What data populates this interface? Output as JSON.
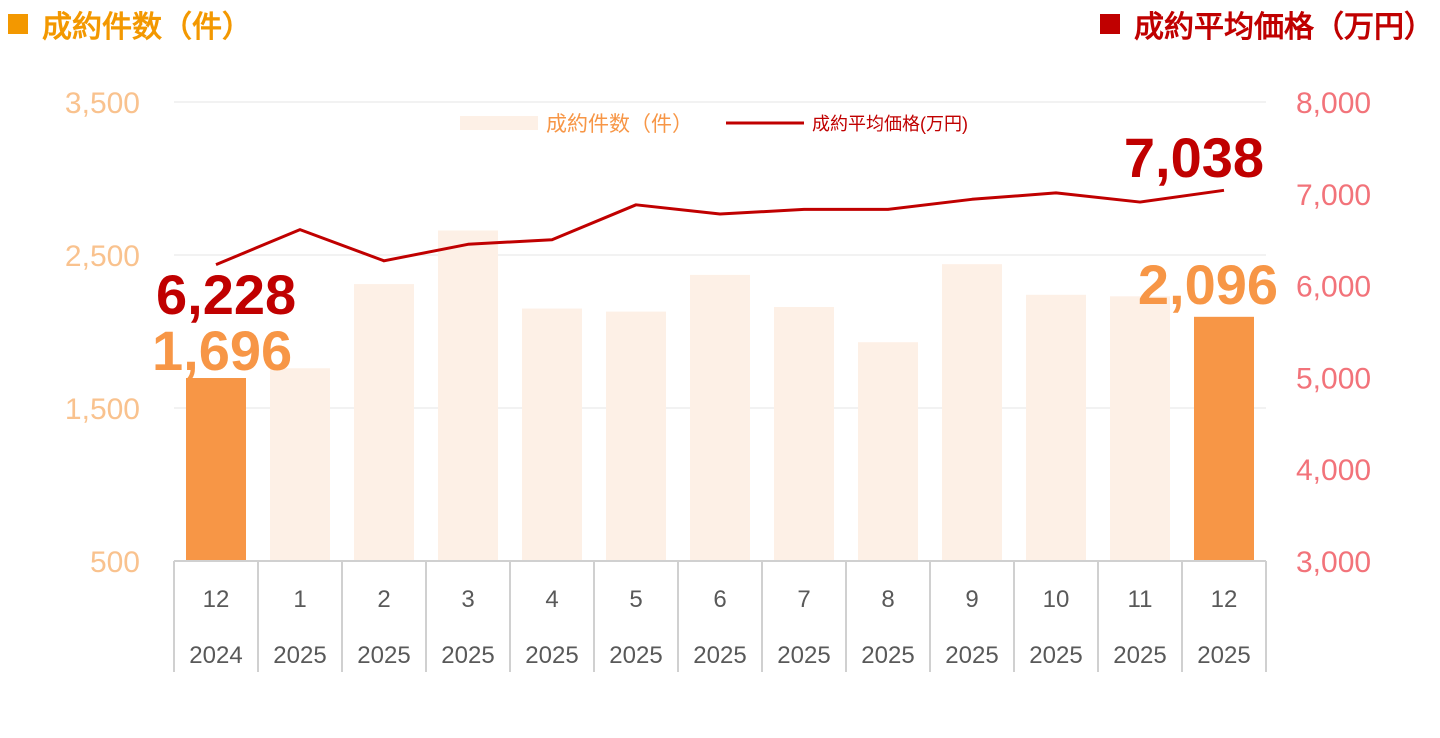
{
  "header": {
    "left_title": "成約件数（件）",
    "right_title": "成約平均価格（万円）",
    "left_color": "#f39800",
    "right_color": "#c00000"
  },
  "chart_data": {
    "type": "bar",
    "categories": [
      {
        "month": "12",
        "year": "2024"
      },
      {
        "month": "1",
        "year": "2025"
      },
      {
        "month": "2",
        "year": "2025"
      },
      {
        "month": "3",
        "year": "2025"
      },
      {
        "month": "4",
        "year": "2025"
      },
      {
        "month": "5",
        "year": "2025"
      },
      {
        "month": "6",
        "year": "2025"
      },
      {
        "month": "7",
        "year": "2025"
      },
      {
        "month": "8",
        "year": "2025"
      },
      {
        "month": "9",
        "year": "2025"
      },
      {
        "month": "10",
        "year": "2025"
      },
      {
        "month": "11",
        "year": "2025"
      },
      {
        "month": "12",
        "year": "2025"
      }
    ],
    "series": [
      {
        "name": "成約件数（件）",
        "type": "bar",
        "axis": "left",
        "values": [
          1696,
          1760,
          2310,
          2660,
          2150,
          2130,
          2370,
          2160,
          1930,
          2440,
          2240,
          2230,
          2096
        ],
        "color": "#f79646",
        "faded_color": "#fdf0e6",
        "highlighted": [
          0,
          12
        ]
      },
      {
        "name": "成約平均価格(万円)",
        "type": "line",
        "axis": "right",
        "values": [
          6228,
          6610,
          6270,
          6450,
          6500,
          6880,
          6780,
          6830,
          6830,
          6940,
          7010,
          6910,
          7038
        ],
        "color": "#c00000"
      }
    ],
    "left_axis": {
      "ticks": [
        "3,500",
        "2,500",
        "1,500",
        "500"
      ],
      "tick_values": [
        3500,
        2500,
        1500,
        500
      ],
      "ylim": [
        500,
        3500
      ],
      "color": "#f9c28e"
    },
    "right_axis": {
      "ticks": [
        "8,000",
        "7,000",
        "6,000",
        "5,000",
        "4,000",
        "3,000"
      ],
      "tick_values": [
        8000,
        7000,
        6000,
        5000,
        4000,
        3000
      ],
      "ylim": [
        3000,
        8000
      ],
      "color": "#f2737a"
    },
    "annotations": [
      {
        "text": "6,228",
        "series": 1,
        "index": 0
      },
      {
        "text": "1,696",
        "series": 0,
        "index": 0
      },
      {
        "text": "7,038",
        "series": 1,
        "index": 12
      },
      {
        "text": "2,096",
        "series": 0,
        "index": 12
      }
    ],
    "legend": {
      "placement": "top-center"
    },
    "grid": true
  }
}
